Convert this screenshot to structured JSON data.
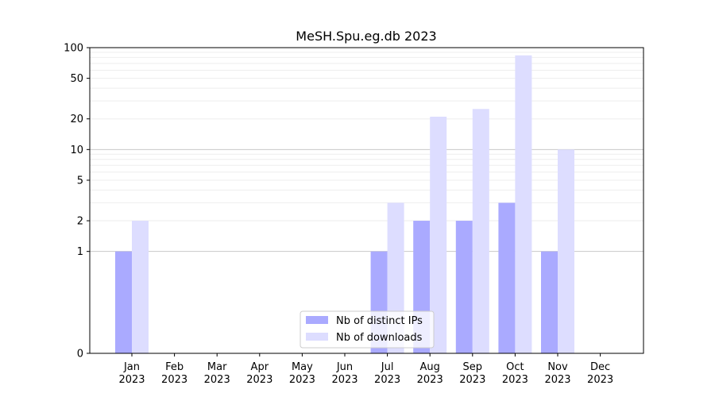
{
  "chart_data": {
    "type": "bar",
    "title": "MeSH.Spu.eg.db 2023",
    "xlabel": "",
    "ylabel": "",
    "categories": [
      [
        "Jan",
        "2023"
      ],
      [
        "Feb",
        "2023"
      ],
      [
        "Mar",
        "2023"
      ],
      [
        "Apr",
        "2023"
      ],
      [
        "May",
        "2023"
      ],
      [
        "Jun",
        "2023"
      ],
      [
        "Jul",
        "2023"
      ],
      [
        "Aug",
        "2023"
      ],
      [
        "Sep",
        "2023"
      ],
      [
        "Oct",
        "2023"
      ],
      [
        "Nov",
        "2023"
      ],
      [
        "Dec",
        "2023"
      ]
    ],
    "series": [
      {
        "name": "Nb of distinct IPs",
        "color": "#aaaaff",
        "values": [
          1,
          0,
          0,
          0,
          0,
          0,
          1,
          2,
          2,
          3,
          1,
          0
        ]
      },
      {
        "name": "Nb of downloads",
        "color": "#ddddff",
        "values": [
          2,
          0,
          0,
          0,
          0,
          0,
          3,
          21,
          25,
          84,
          10,
          0
        ]
      }
    ],
    "y_scale": "symlog",
    "ylim": [
      0,
      100
    ],
    "y_ticks": [
      0,
      1,
      2,
      5,
      10,
      20,
      50,
      100
    ],
    "grid": "horizontal",
    "legend_position": "lower-center"
  }
}
